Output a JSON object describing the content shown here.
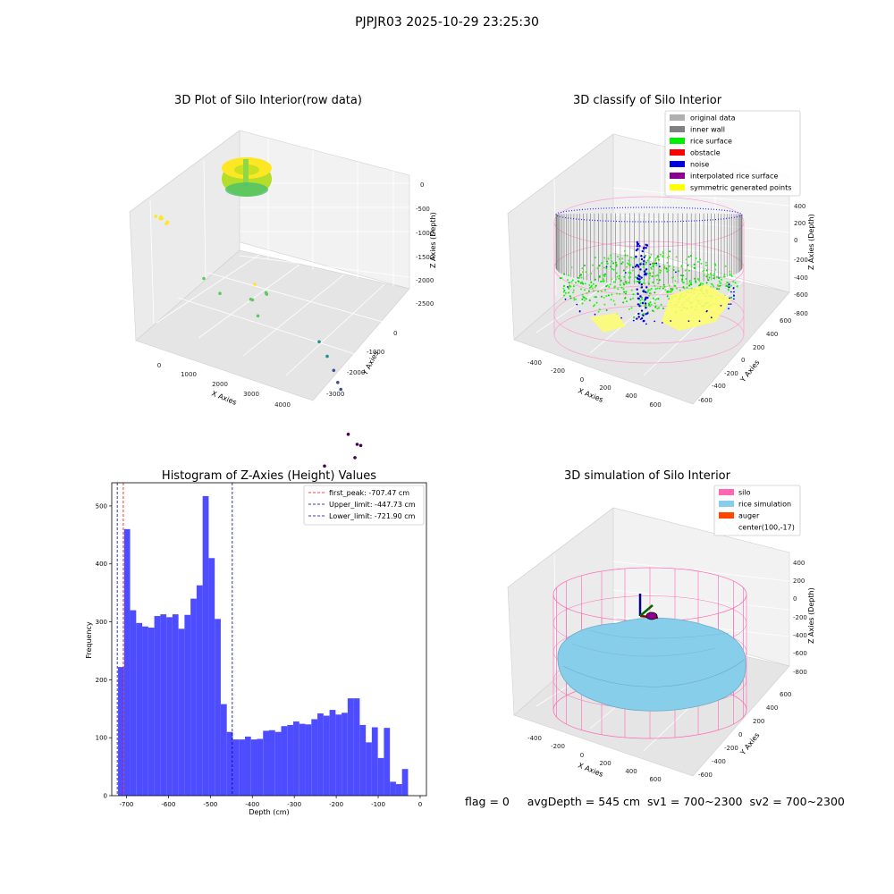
{
  "figure": {
    "suptitle": "PJPJR03 2025-10-29 23:25:30",
    "footer": {
      "flag": "flag = 0",
      "avg_depth": "avgDepth = 545 cm",
      "sv1": "sv1 = 700~2300",
      "sv2": "sv2 = 700~2300"
    }
  },
  "chart_data": [
    {
      "type": "scatter3d",
      "title": "3D Plot of Silo Interior(row data)",
      "xlabel": "X Axies",
      "ylabel": "Y Axies",
      "zlabel": "Z Axies (Depth)",
      "x_ticks": [
        "0",
        "1000",
        "2000",
        "3000",
        "4000"
      ],
      "y_ticks": [
        "0",
        "-1000",
        "-2000",
        "-3000"
      ],
      "z_ticks": [
        "0",
        "-500",
        "-1000",
        "-1500",
        "-2000",
        "-2500"
      ],
      "colormap": "viridis",
      "series": [
        {
          "points": [
            [
              -30,
              -100,
              -50
            ],
            [
              0,
              -200,
              -60
            ],
            [
              50,
              -80,
              -40
            ],
            [
              120,
              -150,
              -45
            ],
            [
              200,
              -100,
              -70
            ],
            [
              -100,
              -50,
              -55
            ],
            [
              80,
              -40,
              -35
            ]
          ],
          "description": "dense silo point cluster near origin"
        },
        {
          "points": [
            [
              100,
              -900,
              -600
            ],
            [
              300,
              -1100,
              -700
            ],
            [
              1200,
              -1300,
              -800
            ],
            [
              1500,
              -1000,
              -650
            ],
            [
              1600,
              -900,
              -700
            ],
            [
              2200,
              -600,
              -500
            ],
            [
              2400,
              -700,
              -550
            ],
            [
              2500,
              -650,
              -600
            ]
          ]
        },
        {
          "points": [
            [
              4100,
              -700,
              -1200
            ],
            [
              4200,
              -800,
              -1400
            ],
            [
              4250,
              -900,
              -1600
            ],
            [
              4300,
              -950,
              -1800
            ],
            [
              4320,
              -1000,
              -1900
            ]
          ]
        },
        {
          "points": [
            [
              3300,
              -1800,
              -2400
            ],
            [
              2800,
              -2300,
              -2300
            ],
            [
              2600,
              -2500,
              -2200
            ],
            [
              2100,
              -2700,
              -2400
            ],
            [
              500,
              -3100,
              -2600
            ]
          ]
        }
      ]
    },
    {
      "type": "scatter3d",
      "title": "3D classify of Silo Interior",
      "xlabel": "X Axies",
      "ylabel": "Y Axies",
      "zlabel": "Z Axies (Depth)",
      "x_ticks": [
        "-400",
        "-200",
        "0",
        "200",
        "400",
        "600"
      ],
      "y_ticks": [
        "600",
        "400",
        "200",
        "0",
        "-200",
        "-400",
        "-600"
      ],
      "z_ticks": [
        "400",
        "200",
        "0",
        "-200",
        "-400",
        "-600",
        "-800"
      ],
      "legend": [
        {
          "label": "original data",
          "color": "#b0b0b0"
        },
        {
          "label": "inner wall",
          "color": "#808080"
        },
        {
          "label": "rice surface",
          "color": "#00ee00"
        },
        {
          "label": "obstacle",
          "color": "#ff0000"
        },
        {
          "label": "noise",
          "color": "#0000e0"
        },
        {
          "label": "interpolated rice surface",
          "color": "#8b008b"
        },
        {
          "label": "symmetric generated points",
          "color": "#ffff00"
        }
      ]
    },
    {
      "type": "bar",
      "title": "Histogram of Z-Axies (Height) Values",
      "xlabel": "Depth (cm)",
      "ylabel": "Frequency",
      "xlim": [
        -735,
        15
      ],
      "ylim": [
        0,
        540
      ],
      "x_ticks": [
        -700,
        -600,
        -500,
        -400,
        -300,
        -200,
        -100,
        0
      ],
      "y_ticks": [
        0,
        100,
        200,
        300,
        400,
        500
      ],
      "bar_color": "#4d4dff",
      "bin_start": -720,
      "bin_width": 14.4,
      "values": [
        222,
        460,
        320,
        298,
        292,
        290,
        310,
        313,
        308,
        313,
        288,
        312,
        340,
        363,
        517,
        410,
        305,
        158,
        110,
        97,
        97,
        102,
        97,
        98,
        112,
        113,
        110,
        120,
        122,
        128,
        124,
        123,
        132,
        142,
        138,
        148,
        140,
        143,
        168,
        168,
        122,
        92,
        118,
        65,
        117,
        24,
        20,
        46
      ],
      "vlines": [
        {
          "label": "first_peak: -707.47 cm",
          "x": -707.47,
          "color": "#ff0000"
        },
        {
          "label": "Upper_limit: -447.73 cm",
          "x": -447.73,
          "color": "#00008b"
        },
        {
          "label": "Lower_limit: -721.90 cm",
          "x": -721.9,
          "color": "#00008b"
        }
      ]
    },
    {
      "type": "surface3d",
      "title": "3D simulation of Silo Interior",
      "xlabel": "X Axies",
      "ylabel": "Y Axies",
      "zlabel": "Z Axies (Depth)",
      "x_ticks": [
        "-400",
        "-200",
        "0",
        "200",
        "400",
        "600"
      ],
      "y_ticks": [
        "600",
        "400",
        "200",
        "0",
        "-200",
        "-400",
        "-600"
      ],
      "z_ticks": [
        "400",
        "200",
        "0",
        "-200",
        "-400",
        "-600",
        "-800"
      ],
      "legend": [
        {
          "label": "silo",
          "color": "#ff69b4"
        },
        {
          "label": "rice simulation",
          "color": "#87ceeb"
        },
        {
          "label": "auger",
          "color": "#ff4500"
        },
        {
          "label": "center(100,-17)",
          "color": ""
        }
      ]
    }
  ]
}
